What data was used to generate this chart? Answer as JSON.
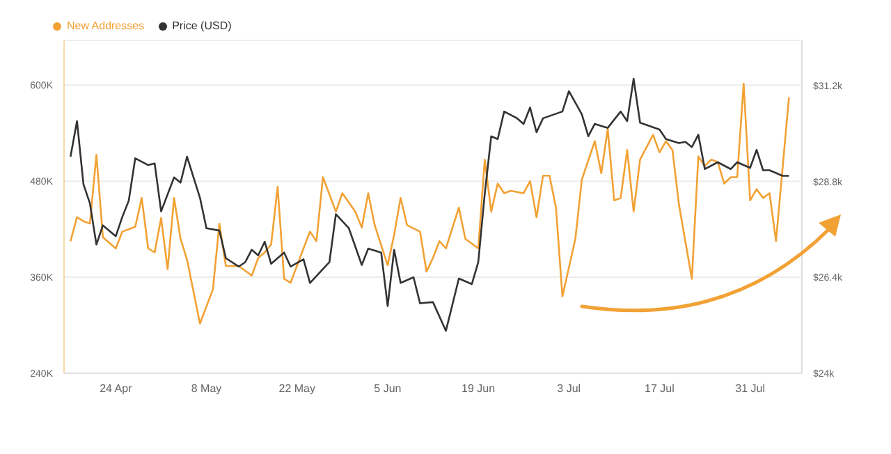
{
  "chart_data": {
    "type": "line",
    "xlim": [
      "--04-16",
      "--08-08"
    ],
    "xticks": [
      {
        "value": "--04-24",
        "label": "24 Apr"
      },
      {
        "value": "--05-08",
        "label": "8 May"
      },
      {
        "value": "--05-22",
        "label": "22 May"
      },
      {
        "value": "--06-05",
        "label": "5 Jun"
      },
      {
        "value": "--06-19",
        "label": "19 Jun"
      },
      {
        "value": "--07-03",
        "label": "3 Jul"
      },
      {
        "value": "--07-17",
        "label": "17 Jul"
      },
      {
        "value": "--07-31",
        "label": "31 Jul"
      }
    ],
    "ylim": [
      240000,
      656000
    ],
    "yticks": [
      {
        "value": 240000,
        "label": "240K"
      },
      {
        "value": 360000,
        "label": "360K"
      },
      {
        "value": 480000,
        "label": "480K"
      },
      {
        "value": 600000,
        "label": "600K"
      }
    ],
    "y2lim": [
      24000,
      32330
    ],
    "y2ticks": [
      {
        "value": 24000,
        "label": "$24k"
      },
      {
        "value": 26400,
        "label": "$26.4k"
      },
      {
        "value": 28800,
        "label": "$28.8k"
      },
      {
        "value": 31200,
        "label": "$31.2k"
      }
    ],
    "grid": "y",
    "legend": "top left",
    "marker": "none",
    "line_style": "solid",
    "series": [
      {
        "name": "New Addresses",
        "color": "#f2a134",
        "x": [
          "--04-17",
          "--04-18",
          "--04-19",
          "--04-20",
          "--04-21",
          "--04-22",
          "--04-24",
          "--04-25",
          "--04-27",
          "--04-28",
          "--04-29",
          "--04-30",
          "--05-01",
          "--05-02",
          "--05-03",
          "--05-04",
          "--05-05",
          "--05-07",
          "--05-09",
          "--05-10",
          "--05-11",
          "--05-13",
          "--05-15",
          "--05-16",
          "--05-17",
          "--05-18",
          "--05-19",
          "--05-20",
          "--05-21",
          "--05-23",
          "--05-24",
          "--05-25",
          "--05-26",
          "--05-28",
          "--05-29",
          "--05-31",
          "--06-01",
          "--06-02",
          "--06-03",
          "--06-05",
          "--06-06",
          "--06-07",
          "--06-08",
          "--06-10",
          "--06-11",
          "--06-12",
          "--06-13",
          "--06-14",
          "--06-16",
          "--06-17",
          "--06-19",
          "--06-20",
          "--06-21",
          "--06-22",
          "--06-23",
          "--06-24",
          "--06-26",
          "--06-27",
          "--06-28",
          "--06-29",
          "--06-30",
          "--07-01",
          "--07-02",
          "--07-04",
          "--07-05",
          "--07-07",
          "--07-08",
          "--07-09",
          "--07-10",
          "--07-11",
          "--07-12",
          "--07-13",
          "--07-14",
          "--07-16",
          "--07-17",
          "--07-18",
          "--07-19",
          "--07-20",
          "--07-22",
          "--07-23",
          "--07-24",
          "--07-25",
          "--07-26",
          "--07-27",
          "--07-28",
          "--07-29",
          "--07-30",
          "--07-31",
          "--08-01",
          "--08-02",
          "--08-03",
          "--08-04",
          "--08-06"
        ],
        "values": [
          405000,
          435000,
          430000,
          427000,
          513000,
          410000,
          396000,
          417000,
          423000,
          459000,
          396000,
          391000,
          434000,
          370000,
          459000,
          408000,
          382000,
          302000,
          345000,
          427000,
          374000,
          374000,
          362000,
          384000,
          391000,
          401000,
          473000,
          358000,
          353000,
          396000,
          417000,
          405000,
          485000,
          442000,
          465000,
          442000,
          422000,
          465000,
          425000,
          375000,
          413000,
          459000,
          425000,
          417000,
          367000,
          384000,
          405000,
          396000,
          447000,
          408000,
          396000,
          507000,
          442000,
          477000,
          465000,
          468000,
          465000,
          480000,
          435000,
          487000,
          487000,
          447000,
          336000,
          408000,
          482000,
          530000,
          490000,
          545000,
          456000,
          459000,
          519000,
          442000,
          507000,
          538000,
          516000,
          530000,
          519000,
          451000,
          358000,
          511000,
          499000,
          507000,
          504000,
          477000,
          485000,
          485000,
          602000,
          456000,
          470000,
          459000,
          465000,
          405000,
          585000
        ]
      },
      {
        "name": "Price (USD)",
        "color": "#333333",
        "axis": "y2",
        "x": [
          "--04-17",
          "--04-18",
          "--04-19",
          "--04-20",
          "--04-21",
          "--04-22",
          "--04-24",
          "--04-25",
          "--04-26",
          "--04-27",
          "--04-29",
          "--04-30",
          "--05-01",
          "--05-03",
          "--05-04",
          "--05-05",
          "--05-07",
          "--05-08",
          "--05-10",
          "--05-11",
          "--05-13",
          "--05-14",
          "--05-15",
          "--05-16",
          "--05-17",
          "--05-18",
          "--05-20",
          "--05-21",
          "--05-23",
          "--05-24",
          "--05-27",
          "--05-28",
          "--05-30",
          "--06-01",
          "--06-02",
          "--06-04",
          "--06-05",
          "--06-06",
          "--06-07",
          "--06-09",
          "--06-10",
          "--06-12",
          "--06-14",
          "--06-16",
          "--06-18",
          "--06-19",
          "--06-20",
          "--06-21",
          "--06-22",
          "--06-23",
          "--06-25",
          "--06-26",
          "--06-27",
          "--06-28",
          "--06-29",
          "--07-02",
          "--07-03",
          "--07-05",
          "--07-06",
          "--07-07",
          "--07-09",
          "--07-11",
          "--07-12",
          "--07-13",
          "--07-14",
          "--07-17",
          "--07-18",
          "--07-20",
          "--07-21",
          "--07-22",
          "--07-23",
          "--07-24",
          "--07-26",
          "--07-28",
          "--07-29",
          "--07-31",
          "--08-01",
          "--08-02",
          "--08-03",
          "--08-05",
          "--08-06"
        ],
        "values": [
          29420,
          30310,
          28730,
          28250,
          27220,
          27700,
          27430,
          27910,
          28320,
          29380,
          29210,
          29250,
          28050,
          28900,
          28770,
          29420,
          28390,
          27630,
          27570,
          26880,
          26670,
          26780,
          27090,
          26950,
          27290,
          26740,
          27020,
          26670,
          26850,
          26260,
          26780,
          27980,
          27630,
          26710,
          27120,
          27020,
          25680,
          27090,
          26260,
          26400,
          25750,
          25780,
          25060,
          26370,
          26230,
          26780,
          28490,
          29930,
          29860,
          30550,
          30380,
          30240,
          30650,
          30030,
          30380,
          30550,
          31060,
          30480,
          29930,
          30240,
          30140,
          30550,
          30310,
          31370,
          30270,
          30100,
          29860,
          29760,
          29790,
          29660,
          29970,
          29110,
          29280,
          29110,
          29280,
          29140,
          29590,
          29080,
          29080,
          28940,
          28940
        ]
      }
    ]
  }
}
